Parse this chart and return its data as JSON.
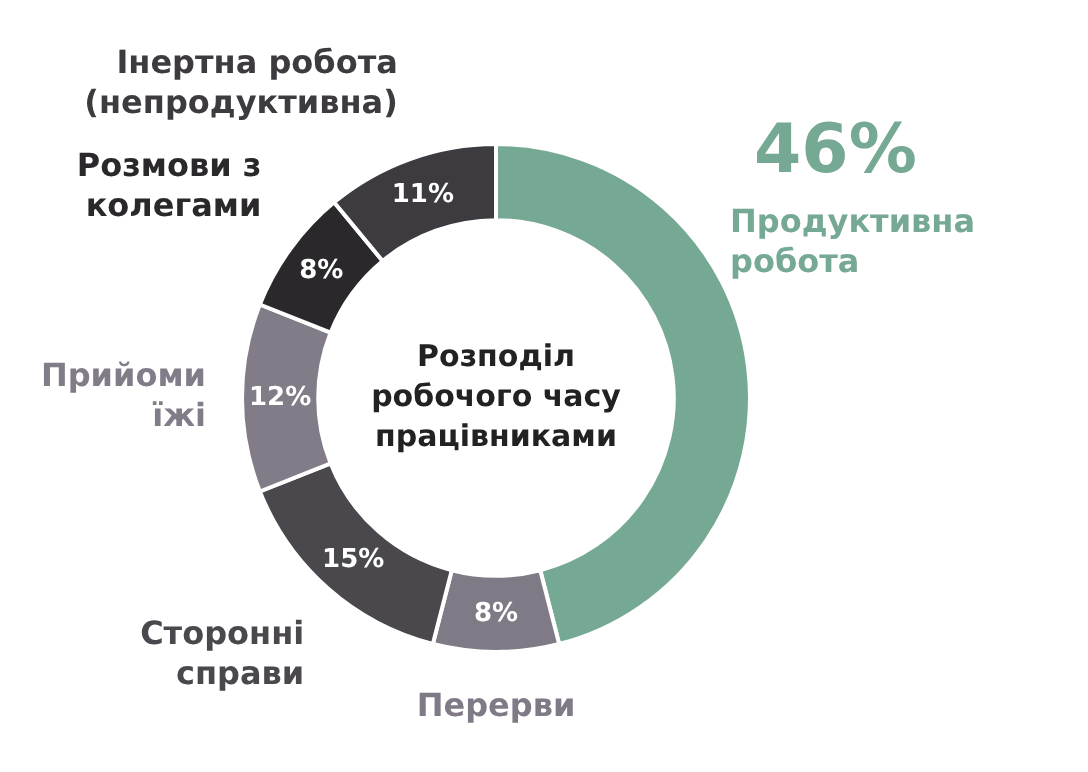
{
  "chart_data": {
    "type": "donut",
    "title": "Розподіл робочого часу працівниками",
    "categories": [
      "Продуктивна робота",
      "Перерви",
      "Сторонні справи",
      "Прийоми їжі",
      "Розмови з колегами",
      "Інертна робота (непродуктивна)"
    ],
    "values": [
      46,
      8,
      15,
      12,
      8,
      11
    ],
    "colors": [
      "#76a994",
      "#807a86",
      "#4a474d",
      "#827c88",
      "#2b282b",
      "#3e3b40"
    ],
    "value_labels": [
      "46%",
      "8%",
      "15%",
      "12%",
      "8%",
      "11%"
    ],
    "legend": false
  }
}
